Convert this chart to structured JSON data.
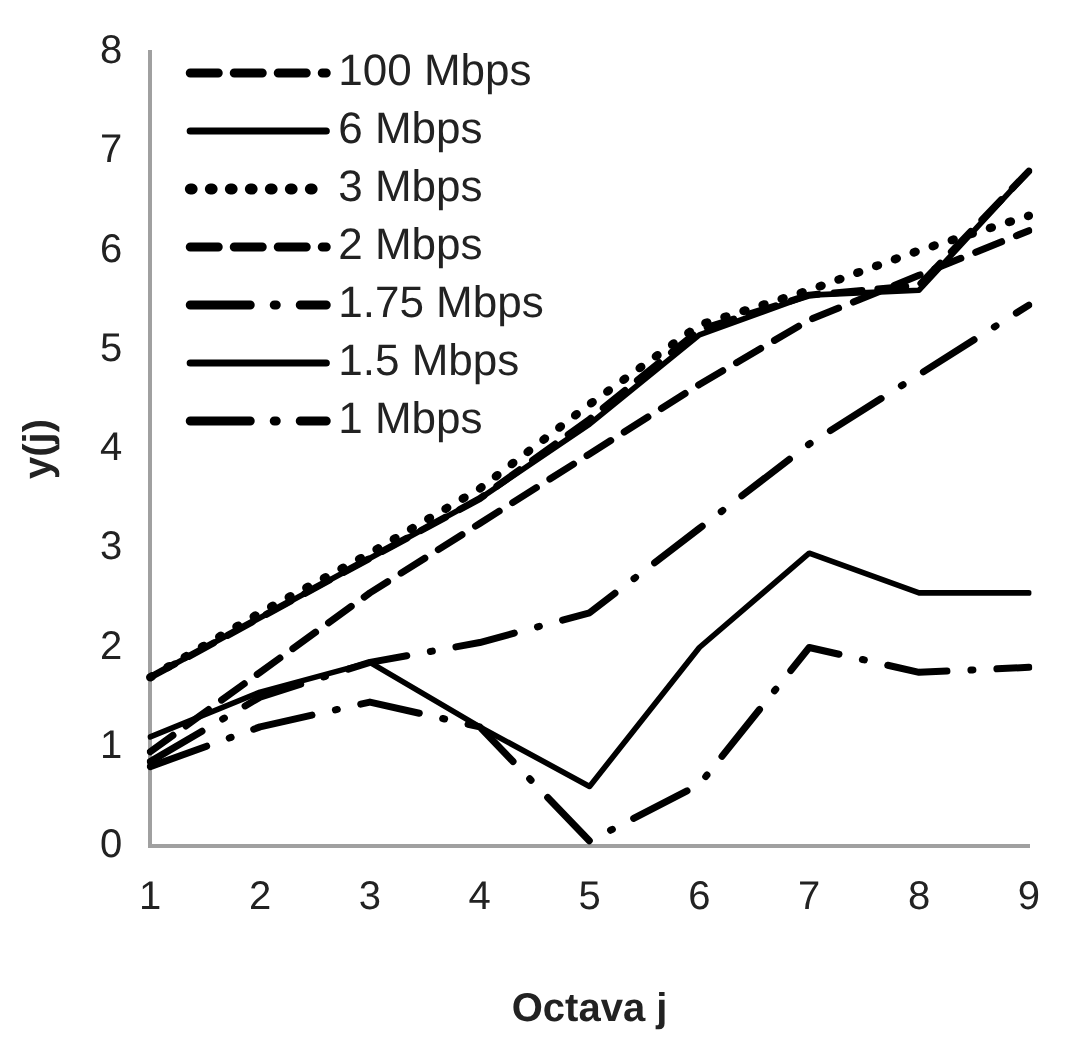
{
  "chart_data": {
    "type": "line",
    "xlabel": "Octava j",
    "ylabel": "y(j)",
    "categories": [
      "1",
      "2",
      "3",
      "4",
      "5",
      "6",
      "7",
      "8",
      "9"
    ],
    "ylim": [
      0,
      8
    ],
    "yticks": [
      0,
      1,
      2,
      3,
      4,
      5,
      6,
      7,
      8
    ],
    "grid": false,
    "legend": "top left",
    "marker": "none",
    "series": [
      {
        "name": "100 Mbps",
        "color": "#000000",
        "line_style": "dashed",
        "values": [
          1.7,
          2.3,
          2.9,
          3.5,
          4.3,
          5.2,
          5.55,
          5.65,
          6.8
        ]
      },
      {
        "name": "6 Mbps",
        "color": "#000000",
        "line_style": "solid",
        "values": [
          1.7,
          2.3,
          2.9,
          3.5,
          4.25,
          5.15,
          5.55,
          5.6,
          6.8
        ]
      },
      {
        "name": "3 Mbps",
        "color": "#000000",
        "line_style": "dotted",
        "values": [
          1.7,
          2.35,
          2.95,
          3.6,
          4.45,
          5.25,
          5.6,
          6.0,
          6.35
        ]
      },
      {
        "name": "2 Mbps",
        "color": "#000000",
        "line_style": "dashed",
        "values": [
          0.95,
          1.75,
          2.55,
          3.25,
          3.95,
          4.65,
          5.3,
          5.75,
          6.2
        ]
      },
      {
        "name": "1.75 Mbps",
        "color": "#000000",
        "line_style": "dashdot",
        "values": [
          0.85,
          1.5,
          1.85,
          2.05,
          2.35,
          3.2,
          4.05,
          4.75,
          5.45
        ]
      },
      {
        "name": "1.5 Mbps",
        "color": "#000000",
        "line_style": "solid",
        "values": [
          1.1,
          1.55,
          1.85,
          1.2,
          0.6,
          2.0,
          2.95,
          2.55,
          2.55
        ]
      },
      {
        "name": "1 Mbps",
        "color": "#000000",
        "line_style": "dashdot",
        "values": [
          0.8,
          1.2,
          1.45,
          1.2,
          0.05,
          0.62,
          2.0,
          1.75,
          1.8
        ]
      }
    ]
  }
}
